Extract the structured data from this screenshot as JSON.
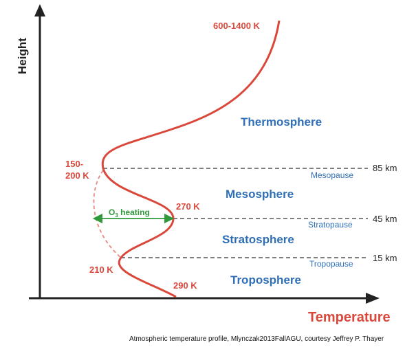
{
  "axes": {
    "y_title": "Height",
    "x_title": "Temperature"
  },
  "layers": [
    {
      "name": "Thermosphere"
    },
    {
      "name": "Mesosphere"
    },
    {
      "name": "Stratosphere"
    },
    {
      "name": "Troposphere"
    }
  ],
  "boundaries": [
    {
      "name": "Mesopause",
      "altitude": "85 km"
    },
    {
      "name": "Stratopause",
      "altitude": "45 km"
    },
    {
      "name": "Tropopause",
      "altitude": "15 km"
    }
  ],
  "temperatures": {
    "top": "600-1400 K",
    "mesopause_line1": "150-",
    "mesopause_line2": "200 K",
    "stratopause": "270 K",
    "tropopause": "210 K",
    "surface": "290 K"
  },
  "ozone": {
    "label_o": "O",
    "label_sub": "3",
    "label_rest": " heating"
  },
  "caption": "Atmospheric temperature profile, Mlynczak2013FallAGU, courtesy Jeffrey P. Thayer",
  "colors": {
    "profile": "#d9483b",
    "layer_text": "#2f6fb7",
    "ozone": "#2f9a3a",
    "axis": "#222222"
  }
}
